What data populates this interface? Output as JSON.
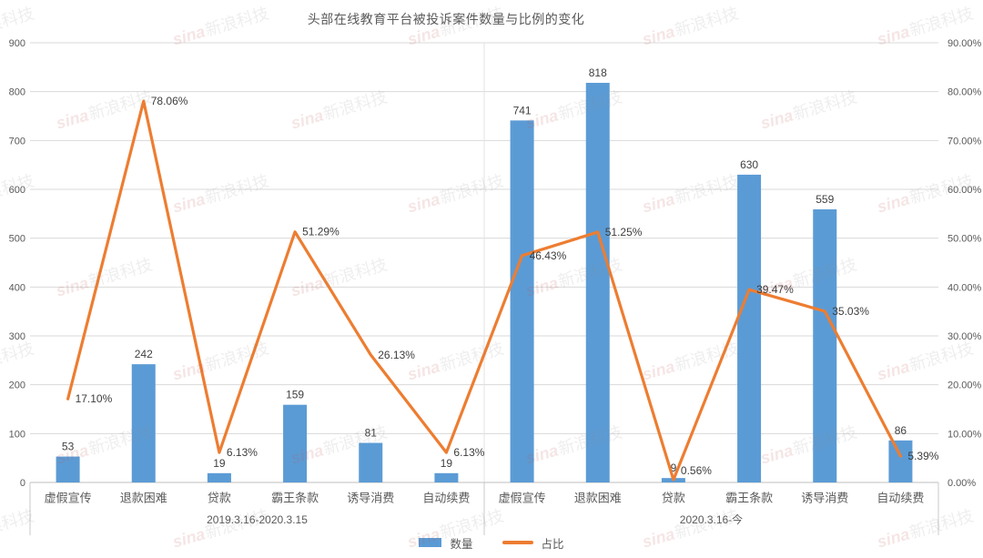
{
  "title": "头部在线教育平台被投诉案件数量与比例的变化",
  "watermark": {
    "brand": "sina",
    "text": "新浪科技"
  },
  "legend": {
    "items": [
      {
        "label": "数量"
      },
      {
        "label": "占比"
      }
    ]
  },
  "colors": {
    "bar": "#5B9BD5",
    "line": "#ED7D31",
    "grid": "#D9D9D9",
    "axis_line": "#BFBFBF",
    "separator": "#C9C9C9",
    "axis_text": "#595959",
    "label_text": "#404040"
  },
  "chart_data": {
    "type": "bar+line combo",
    "title": "头部在线教育平台被投诉案件数量与比例的变化",
    "grid": true,
    "legend_position": "bottom",
    "series": [
      {
        "name": "数量",
        "type": "bar",
        "axis": "left"
      },
      {
        "name": "占比",
        "type": "line",
        "axis": "right"
      }
    ],
    "left_axis": {
      "min": 0,
      "max": 900,
      "step": 100,
      "tick_labels": [
        "0",
        "100",
        "200",
        "300",
        "400",
        "500",
        "600",
        "700",
        "800",
        "900"
      ]
    },
    "right_axis": {
      "min": 0,
      "max": 90,
      "step": 10,
      "tick_labels": [
        "0.00%",
        "10.00%",
        "20.00%",
        "30.00%",
        "40.00%",
        "50.00%",
        "60.00%",
        "70.00%",
        "80.00%",
        "90.00%"
      ]
    },
    "groups": [
      {
        "label": "2019.3.16-2020.3.15",
        "categories": [
          "虚假宣传",
          "退款困难",
          "贷款",
          "霸王条款",
          "诱导消费",
          "自动续费"
        ],
        "counts": [
          53,
          242,
          19,
          159,
          81,
          19
        ],
        "ratios": [
          17.1,
          78.06,
          6.13,
          51.29,
          26.13,
          6.13
        ],
        "ratio_labels": [
          "17.10%",
          "78.06%",
          "6.13%",
          "51.29%",
          "26.13%",
          "6.13%"
        ]
      },
      {
        "label": "2020.3.16-今",
        "categories": [
          "虚假宣传",
          "退款困难",
          "贷款",
          "霸王条款",
          "诱导消费",
          "自动续费"
        ],
        "counts": [
          741,
          818,
          9,
          630,
          559,
          86
        ],
        "ratios": [
          46.43,
          51.25,
          0.56,
          39.47,
          35.03,
          5.39
        ],
        "ratio_labels": [
          "46.43%",
          "51.25%",
          "0.56%",
          "39.47%",
          "35.03%",
          "5.39%"
        ]
      }
    ]
  }
}
